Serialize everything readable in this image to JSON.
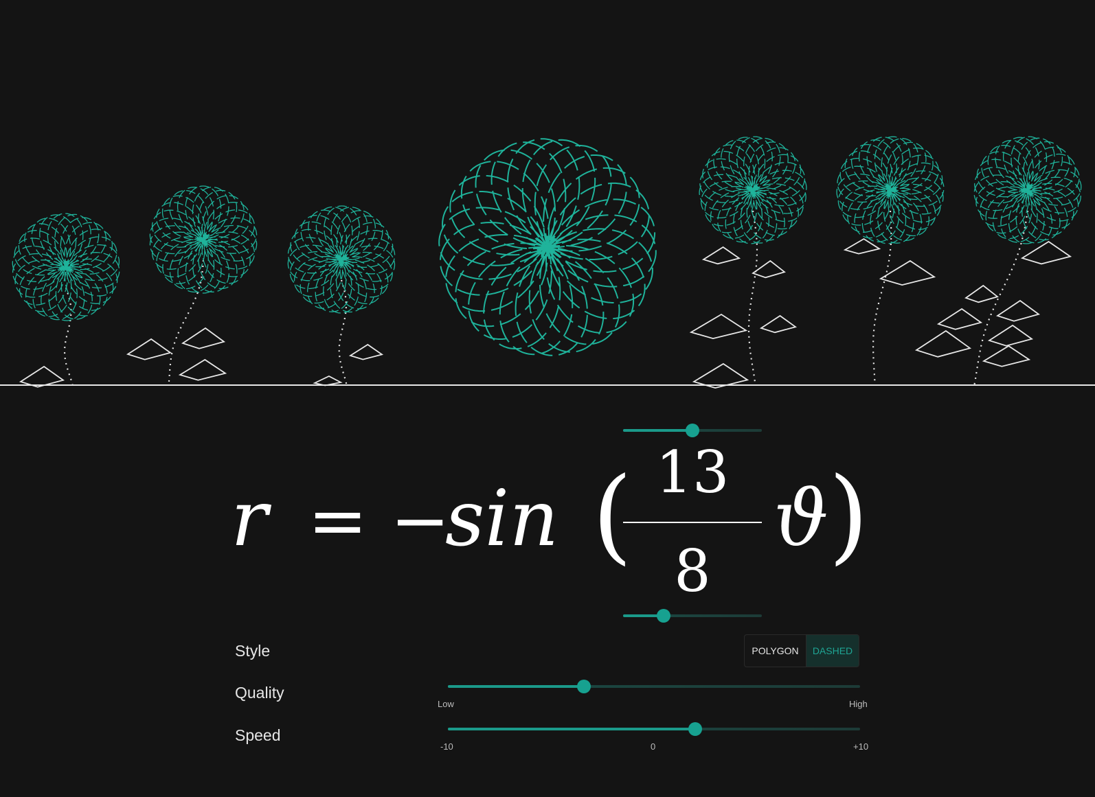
{
  "colors": {
    "background": "#141414",
    "accent": "#1b9a8a",
    "flower": "#1fb39b",
    "stem": "#e8e8e8"
  },
  "equation": {
    "lhs": "r",
    "equals": "=",
    "minus": "−",
    "func": "sin",
    "open_paren": "(",
    "numerator": "13",
    "denominator": "8",
    "variable": "ϑ",
    "close_paren": ")",
    "numerator_slider": {
      "fraction": 0.5
    },
    "denominator_slider": {
      "fraction": 0.29
    }
  },
  "controls": {
    "style": {
      "label": "Style",
      "options": [
        "POLYGON",
        "DASHED"
      ],
      "selected": "DASHED"
    },
    "quality": {
      "label": "Quality",
      "fraction": 0.33,
      "min_label": "Low",
      "max_label": "High"
    },
    "speed": {
      "label": "Speed",
      "fraction": 0.6,
      "ticks": [
        "-10",
        "0",
        "+10"
      ]
    }
  }
}
